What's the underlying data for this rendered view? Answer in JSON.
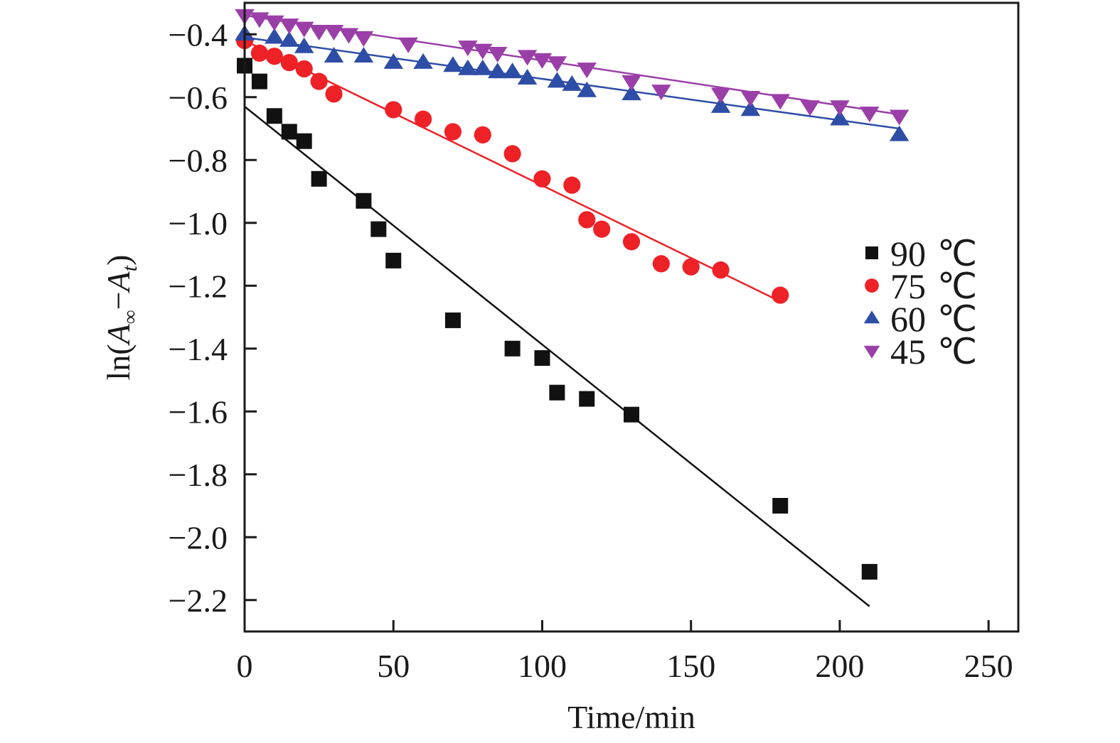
{
  "chart_data": {
    "type": "scatter",
    "title": "",
    "xlabel": "Time/min",
    "ylabel": {
      "prefix": "ln(",
      "A1": "A",
      "sub1": "∞",
      "minus": "−",
      "A2": "A",
      "sub2": "t",
      "suffix": ")"
    },
    "xlim": [
      0,
      260
    ],
    "ylim": [
      -2.3,
      -0.3
    ],
    "xticks": [
      0,
      50,
      100,
      150,
      200,
      250
    ],
    "xtick_labels": [
      "0",
      "50",
      "100",
      "150",
      "200",
      "250"
    ],
    "yticks": [
      -0.4,
      -0.6,
      -0.8,
      -1.0,
      -1.2,
      -1.4,
      -1.6,
      -1.8,
      -2.0,
      -2.2
    ],
    "ytick_labels": [
      "−0.4",
      "−0.6",
      "−0.8",
      "−1.0",
      "−1.2",
      "−1.4",
      "−1.6",
      "−1.8",
      "−2.0",
      "−2.2"
    ],
    "grid": false,
    "legend_position": "right-middle",
    "series": [
      {
        "name": "90 ℃",
        "label_value": "90",
        "label_unit": "℃",
        "marker": "square",
        "color": "#111111",
        "x": [
          0,
          5,
          10,
          15,
          20,
          25,
          40,
          45,
          50,
          70,
          90,
          100,
          105,
          115,
          130,
          180,
          210
        ],
        "y": [
          -0.5,
          -0.55,
          -0.66,
          -0.71,
          -0.74,
          -0.86,
          -0.93,
          -1.02,
          -1.12,
          -1.31,
          -1.4,
          -1.43,
          -1.54,
          -1.56,
          -1.61,
          -1.9,
          -2.11
        ],
        "fit": {
          "x": [
            0,
            210
          ],
          "y": [
            -0.63,
            -2.22
          ]
        }
      },
      {
        "name": "75 ℃",
        "label_value": "75",
        "label_unit": "℃",
        "marker": "circle",
        "color": "#ee2127",
        "x": [
          0,
          5,
          10,
          15,
          20,
          25,
          30,
          50,
          60,
          70,
          80,
          90,
          100,
          110,
          115,
          120,
          130,
          140,
          150,
          160,
          180
        ],
        "y": [
          -0.42,
          -0.46,
          -0.47,
          -0.49,
          -0.51,
          -0.55,
          -0.59,
          -0.64,
          -0.67,
          -0.71,
          -0.72,
          -0.78,
          -0.86,
          -0.88,
          -0.99,
          -1.02,
          -1.06,
          -1.13,
          -1.14,
          -1.15,
          -1.23
        ],
        "fit": {
          "x": [
            0,
            180
          ],
          "y": [
            -0.42,
            -1.25
          ]
        }
      },
      {
        "name": "60 ℃",
        "label_value": "60",
        "label_unit": "℃",
        "marker": "triangle-up",
        "color": "#2e4da6",
        "x": [
          0,
          10,
          15,
          20,
          30,
          40,
          50,
          60,
          70,
          75,
          80,
          85,
          90,
          95,
          105,
          110,
          115,
          130,
          160,
          170,
          200,
          220
        ],
        "y": [
          -0.4,
          -0.41,
          -0.42,
          -0.44,
          -0.47,
          -0.47,
          -0.49,
          -0.49,
          -0.5,
          -0.51,
          -0.51,
          -0.52,
          -0.52,
          -0.54,
          -0.55,
          -0.56,
          -0.58,
          -0.59,
          -0.63,
          -0.64,
          -0.67,
          -0.72
        ],
        "fit": {
          "x": [
            0,
            220
          ],
          "y": [
            -0.41,
            -0.7
          ]
        }
      },
      {
        "name": "45 ℃",
        "label_value": "45",
        "label_unit": "℃",
        "marker": "triangle-down",
        "color": "#9b3fa8",
        "x": [
          0,
          5,
          10,
          15,
          20,
          25,
          30,
          35,
          40,
          55,
          75,
          80,
          85,
          95,
          100,
          105,
          115,
          130,
          140,
          160,
          170,
          180,
          190,
          200,
          210,
          220
        ],
        "y": [
          -0.34,
          -0.35,
          -0.36,
          -0.37,
          -0.38,
          -0.39,
          -0.39,
          -0.4,
          -0.41,
          -0.43,
          -0.44,
          -0.45,
          -0.46,
          -0.47,
          -0.48,
          -0.49,
          -0.51,
          -0.55,
          -0.58,
          -0.59,
          -0.6,
          -0.61,
          -0.63,
          -0.63,
          -0.65,
          -0.66
        ],
        "fit": {
          "x": [
            0,
            220
          ],
          "y": [
            -0.34,
            -0.655
          ]
        }
      }
    ]
  }
}
